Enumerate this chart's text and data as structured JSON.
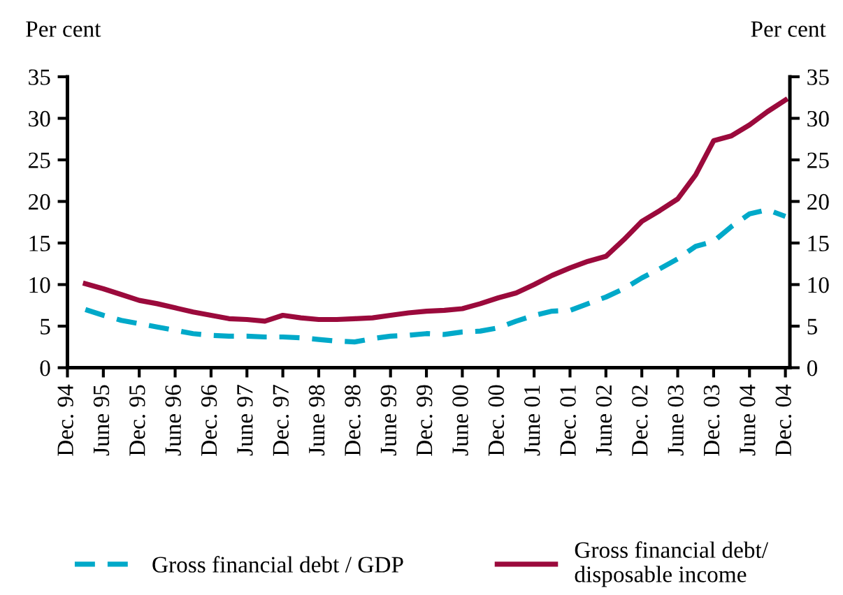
{
  "chart_data": {
    "type": "line",
    "ylabel": "Per cent",
    "y2label": "Per cent",
    "categories": [
      "Dec. 94",
      null,
      "June 95",
      null,
      "Dec. 95",
      null,
      "June 96",
      null,
      "Dec. 96",
      null,
      "June 97",
      null,
      "Dec. 97",
      null,
      "June 98",
      null,
      "Dec. 98",
      null,
      "June 99",
      null,
      "Dec. 99",
      null,
      "June 00",
      null,
      "Dec. 00",
      null,
      "June 01",
      null,
      "Dec. 01",
      null,
      "June 02",
      null,
      "Dec. 02",
      null,
      "June 03",
      null,
      "Dec. 03",
      null,
      "June 04",
      null,
      "Dec. 04"
    ],
    "series": [
      {
        "name": "Gross financial debt / GDP",
        "color": "#00a9c9",
        "line_style": "dashed",
        "values": [
          null,
          7.0,
          6.3,
          5.7,
          5.3,
          4.9,
          4.5,
          4.1,
          3.9,
          3.8,
          3.8,
          3.7,
          3.7,
          3.6,
          3.4,
          3.2,
          3.1,
          3.5,
          3.8,
          3.9,
          4.1,
          4.0,
          4.3,
          4.4,
          4.8,
          5.6,
          6.3,
          6.8,
          6.9,
          7.7,
          8.5,
          9.5,
          10.8,
          11.9,
          13.1,
          14.6,
          15.2,
          17.0,
          18.5,
          19.0,
          18.2
        ]
      },
      {
        "name": "Gross financial debt/\ndisposable income",
        "color": "#9b0a3c",
        "line_style": "solid",
        "values": [
          null,
          10.1,
          9.5,
          8.8,
          8.1,
          7.7,
          7.2,
          6.7,
          6.3,
          5.9,
          5.8,
          5.6,
          6.3,
          6.0,
          5.8,
          5.8,
          5.9,
          6.0,
          6.3,
          6.6,
          6.8,
          6.9,
          7.1,
          7.7,
          8.4,
          9.0,
          10.0,
          11.1,
          12.0,
          12.8,
          13.4,
          15.4,
          17.6,
          18.9,
          20.3,
          23.2,
          27.3,
          27.9,
          29.2,
          30.8,
          32.2
        ]
      }
    ],
    "ylim": [
      0,
      35
    ],
    "yticks": [
      0,
      5,
      10,
      15,
      20,
      25,
      30,
      35
    ],
    "y2lim": [
      0,
      35
    ],
    "y2ticks": [
      0,
      5,
      10,
      15,
      20,
      25,
      30,
      35
    ],
    "grid": false,
    "legend": "bottom",
    "marker": "none"
  }
}
